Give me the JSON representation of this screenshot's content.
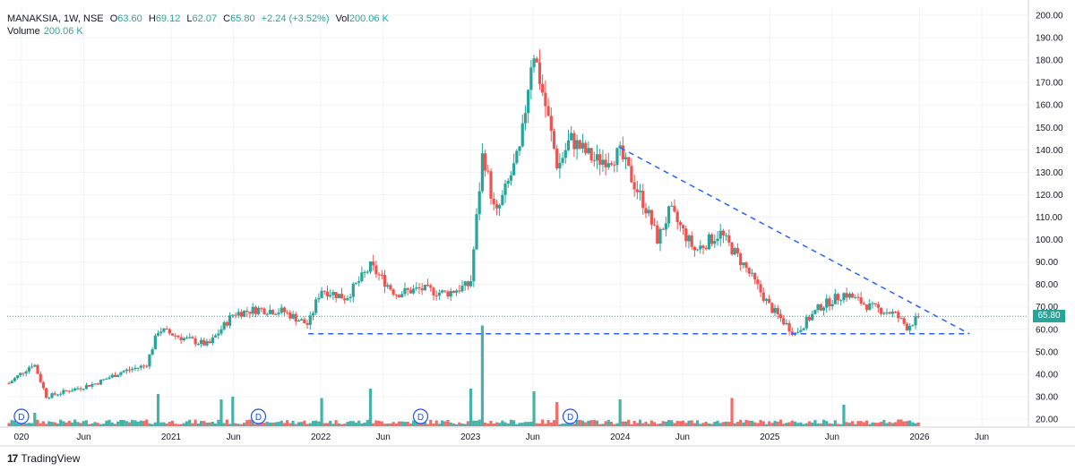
{
  "legend": {
    "symbol": "MANAKSIA",
    "interval": "1W",
    "exchange": "NSE",
    "open_label": "O",
    "open": "63.60",
    "high_label": "H",
    "high": "69.12",
    "low_label": "L",
    "low": "62.07",
    "close_label": "C",
    "close": "65.80",
    "change": "+2.24 (+3.52%)",
    "vol_label": "Vol",
    "vol": "200.06 K",
    "volume_label": "Volume",
    "volume_value": "200.06 K"
  },
  "brand": {
    "name": "TradingView",
    "logo": "17"
  },
  "last_price_tag": "65.80",
  "dividend_marker_label": "D",
  "colors": {
    "up": "#26a69a",
    "down": "#ef5350",
    "trendline": "#2962ff",
    "grid": "#f0f3fa",
    "axis_text": "#131722"
  },
  "chart_data": {
    "type": "candlestick",
    "interval": "1W",
    "y_axis": {
      "min": 20,
      "max": 200,
      "ticks": [
        20,
        30,
        40,
        50,
        60,
        70,
        80,
        90,
        100,
        110,
        120,
        130,
        140,
        150,
        160,
        170,
        180,
        190,
        200
      ],
      "position": "right"
    },
    "x_axis": {
      "start": "2019-12",
      "end": "2026-07",
      "ticks": [
        {
          "label": "020",
          "date": "2020-01"
        },
        {
          "label": "Jun",
          "date": "2020-06"
        },
        {
          "label": "2021",
          "date": "2021-01"
        },
        {
          "label": "Jun",
          "date": "2021-06"
        },
        {
          "label": "2022",
          "date": "2022-01"
        },
        {
          "label": "Jun",
          "date": "2022-06"
        },
        {
          "label": "2023",
          "date": "2023-01"
        },
        {
          "label": "Jun",
          "date": "2023-06"
        },
        {
          "label": "2024",
          "date": "2024-01"
        },
        {
          "label": "Jun",
          "date": "2024-06"
        },
        {
          "label": "2025",
          "date": "2025-01"
        },
        {
          "label": "Jun",
          "date": "2025-06"
        },
        {
          "label": "2026",
          "date": "2026-01"
        },
        {
          "label": "Jun",
          "date": "2026-06"
        }
      ]
    },
    "grid": true,
    "last_close": 65.8,
    "trendlines": [
      {
        "style": "dashed",
        "from": {
          "date": "2021-12",
          "price": 58
        },
        "to": {
          "date": "2026-05",
          "price": 58
        }
      },
      {
        "style": "dashed",
        "from": {
          "date": "2024-01",
          "price": 141
        },
        "to": {
          "date": "2026-05",
          "price": 58
        }
      }
    ],
    "dividend_markers": [
      "2020-01",
      "2021-08",
      "2022-09",
      "2023-09"
    ],
    "price_path": [
      {
        "date": "2019-12",
        "price": 36
      },
      {
        "date": "2020-02",
        "price": 45
      },
      {
        "date": "2020-03",
        "price": 30
      },
      {
        "date": "2020-05",
        "price": 33
      },
      {
        "date": "2020-07",
        "price": 36
      },
      {
        "date": "2020-09",
        "price": 41
      },
      {
        "date": "2020-11",
        "price": 44
      },
      {
        "date": "2020-12",
        "price": 60
      },
      {
        "date": "2021-02",
        "price": 56
      },
      {
        "date": "2021-04",
        "price": 53
      },
      {
        "date": "2021-06",
        "price": 67
      },
      {
        "date": "2021-08",
        "price": 69
      },
      {
        "date": "2021-10",
        "price": 68
      },
      {
        "date": "2021-12",
        "price": 62
      },
      {
        "date": "2022-01",
        "price": 78
      },
      {
        "date": "2022-03",
        "price": 74
      },
      {
        "date": "2022-05",
        "price": 88
      },
      {
        "date": "2022-07",
        "price": 76
      },
      {
        "date": "2022-09",
        "price": 78
      },
      {
        "date": "2022-11",
        "price": 76
      },
      {
        "date": "2023-01",
        "price": 80
      },
      {
        "date": "2023-02",
        "price": 140
      },
      {
        "date": "2023-03",
        "price": 110
      },
      {
        "date": "2023-04",
        "price": 125
      },
      {
        "date": "2023-05",
        "price": 140
      },
      {
        "date": "2023-06",
        "price": 186
      },
      {
        "date": "2023-07",
        "price": 160
      },
      {
        "date": "2023-08",
        "price": 132
      },
      {
        "date": "2023-09",
        "price": 145
      },
      {
        "date": "2023-11",
        "price": 135
      },
      {
        "date": "2024-01",
        "price": 138
      },
      {
        "date": "2024-03",
        "price": 115
      },
      {
        "date": "2024-04",
        "price": 100
      },
      {
        "date": "2024-05",
        "price": 113
      },
      {
        "date": "2024-07",
        "price": 95
      },
      {
        "date": "2024-09",
        "price": 103
      },
      {
        "date": "2024-11",
        "price": 88
      },
      {
        "date": "2025-01",
        "price": 70
      },
      {
        "date": "2025-03",
        "price": 58
      },
      {
        "date": "2025-05",
        "price": 70
      },
      {
        "date": "2025-07",
        "price": 76
      },
      {
        "date": "2025-09",
        "price": 70
      },
      {
        "date": "2025-11",
        "price": 67
      },
      {
        "date": "2025-12",
        "price": 61
      },
      {
        "date": "2026-01",
        "price": 65.8
      }
    ],
    "volume_spikes": [
      {
        "date": "2020-02",
        "volume": 1.0
      },
      {
        "date": "2020-12",
        "volume": 2.4
      },
      {
        "date": "2021-05",
        "volume": 2.0
      },
      {
        "date": "2021-06",
        "volume": 2.2
      },
      {
        "date": "2022-01",
        "volume": 2.1
      },
      {
        "date": "2022-05",
        "volume": 2.8
      },
      {
        "date": "2023-01",
        "volume": 2.8
      },
      {
        "date": "2023-02",
        "volume": 7.5
      },
      {
        "date": "2023-06",
        "volume": 2.6
      },
      {
        "date": "2023-08",
        "volume": 1.8
      },
      {
        "date": "2024-01",
        "volume": 2.0
      },
      {
        "date": "2024-10",
        "volume": 2.1
      },
      {
        "date": "2025-07",
        "volume": 1.6
      }
    ]
  }
}
